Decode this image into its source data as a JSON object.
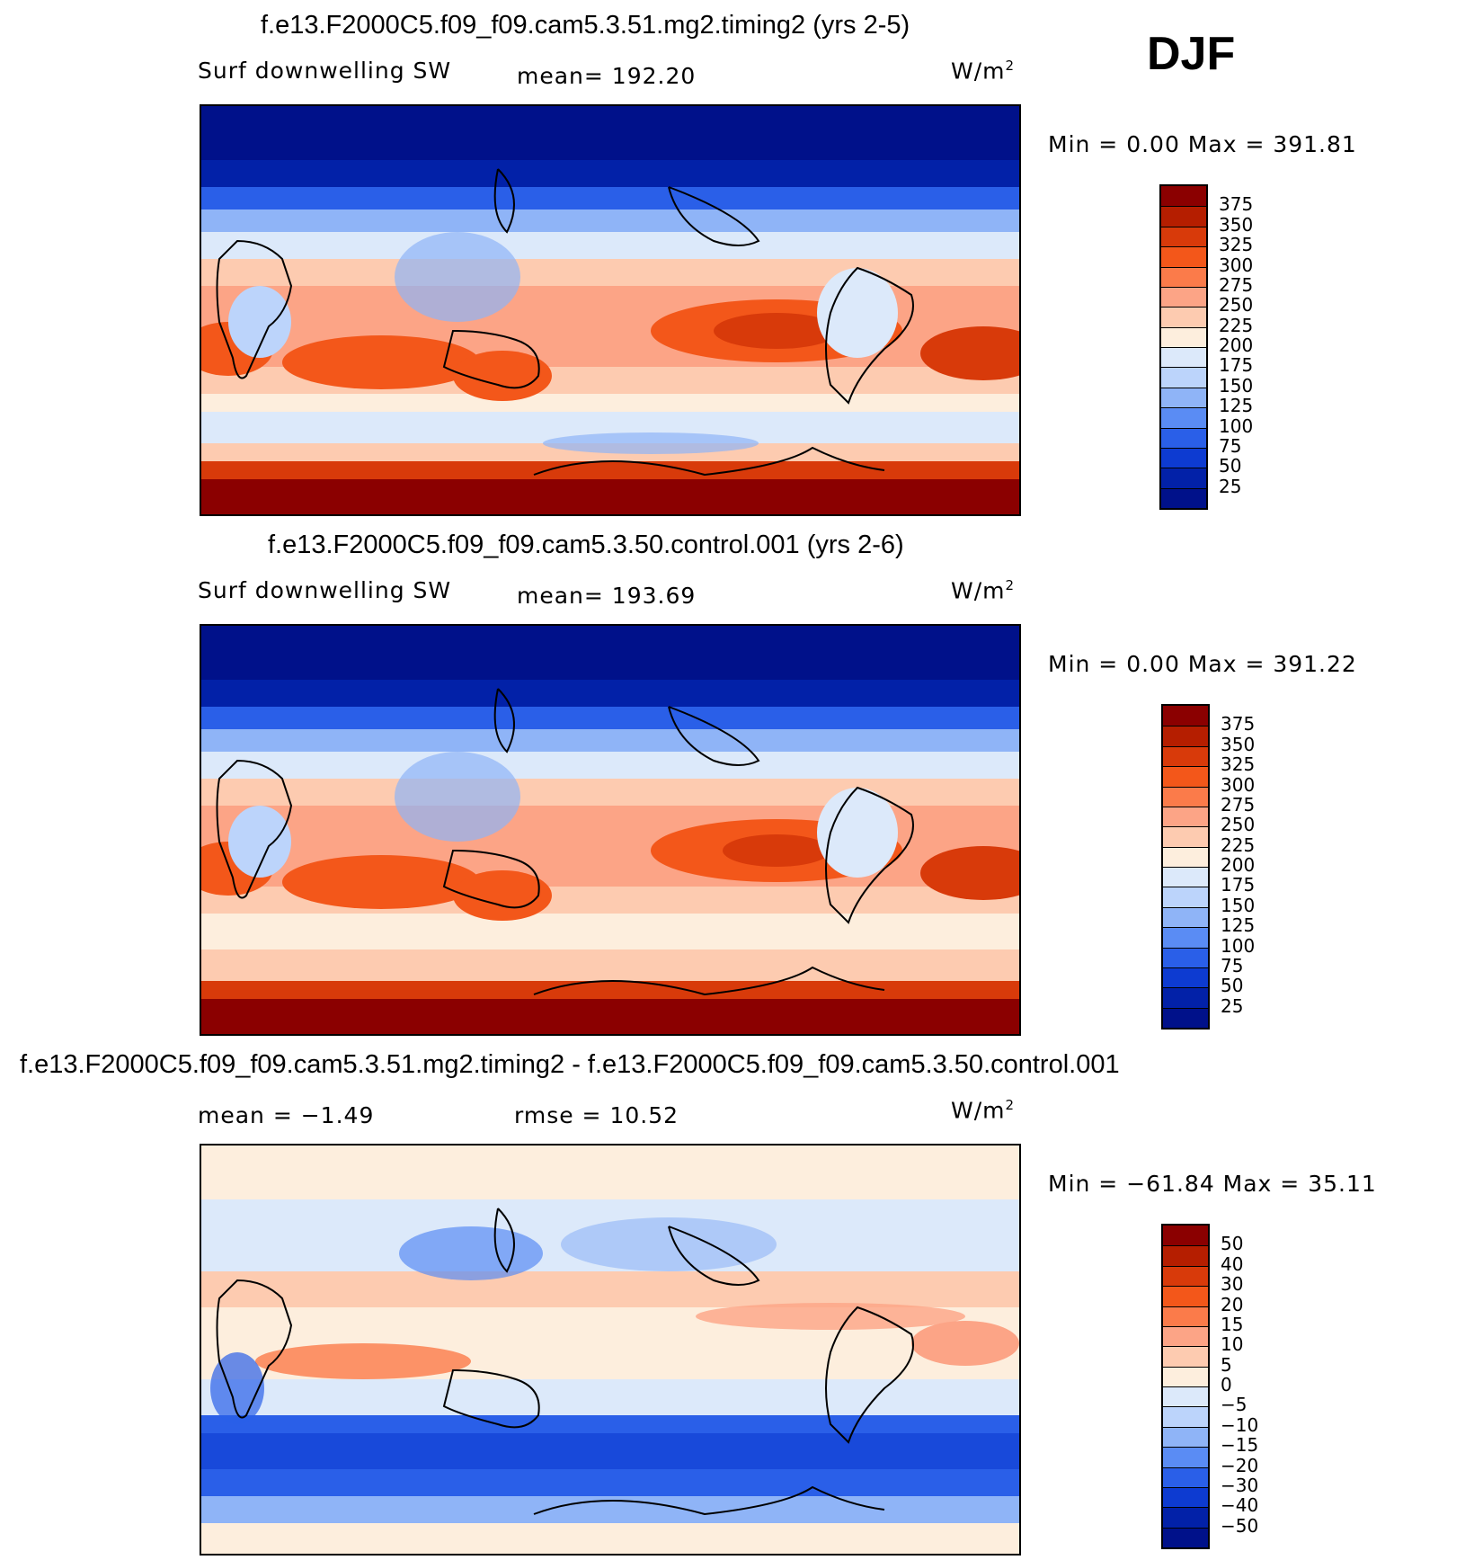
{
  "season": "DJF",
  "units_base": "W/m",
  "units_exp": "2",
  "panels": [
    {
      "title": "f.e13.F2000C5.f09_f09.cam5.3.51.mg2.timing2 (yrs 2-5)",
      "variable": "Surf downwelling SW",
      "mean_text": "mean= 192.20",
      "minmax_text": "Min =    0.00 Max = 391.81",
      "colorbar": {
        "ticks": [
          "375",
          "350",
          "325",
          "300",
          "275",
          "250",
          "225",
          "200",
          "175",
          "150",
          "125",
          "100",
          "75",
          "50",
          "25"
        ],
        "colors": [
          "#8b0000",
          "#b51e00",
          "#d83a0a",
          "#f3571a",
          "#fb7b4a",
          "#fca486",
          "#fdcbb0",
          "#fdeedd",
          "#dce9fa",
          "#bcd4fb",
          "#8fb4f7",
          "#5a8cf4",
          "#2a5fe8",
          "#0d3bd1",
          "#0221a8",
          "#00118a"
        ]
      }
    },
    {
      "title": "f.e13.F2000C5.f09_f09.cam5.3.50.control.001 (yrs 2-6)",
      "variable": "Surf downwelling SW",
      "mean_text": "mean= 193.69",
      "minmax_text": "Min =    0.00 Max = 391.22",
      "colorbar": {
        "ticks": [
          "375",
          "350",
          "325",
          "300",
          "275",
          "250",
          "225",
          "200",
          "175",
          "150",
          "125",
          "100",
          "75",
          "50",
          "25"
        ],
        "colors": [
          "#8b0000",
          "#b51e00",
          "#d83a0a",
          "#f3571a",
          "#fb7b4a",
          "#fca486",
          "#fdcbb0",
          "#fdeedd",
          "#dce9fa",
          "#bcd4fb",
          "#8fb4f7",
          "#5a8cf4",
          "#2a5fe8",
          "#0d3bd1",
          "#0221a8",
          "#00118a"
        ]
      }
    },
    {
      "title": "f.e13.F2000C5.f09_f09.cam5.3.51.mg2.timing2 - f.e13.F2000C5.f09_f09.cam5.3.50.control.001",
      "mean_text": "mean =   −1.49",
      "rmse_text": "rmse =   10.52",
      "minmax_text": "Min = −61.84 Max =   35.11",
      "colorbar": {
        "ticks": [
          "50",
          "40",
          "30",
          "20",
          "15",
          "10",
          "5",
          "0",
          "−5",
          "−10",
          "−15",
          "−20",
          "−30",
          "−40",
          "−50"
        ],
        "colors": [
          "#8b0000",
          "#b51e00",
          "#d83a0a",
          "#f3571a",
          "#fb7b4a",
          "#fca486",
          "#fdcbb0",
          "#fdeedd",
          "#dce9fa",
          "#bcd4fb",
          "#8fb4f7",
          "#5a8cf4",
          "#2a5fe8",
          "#0d3bd1",
          "#0221a8",
          "#00118a"
        ]
      }
    }
  ]
}
